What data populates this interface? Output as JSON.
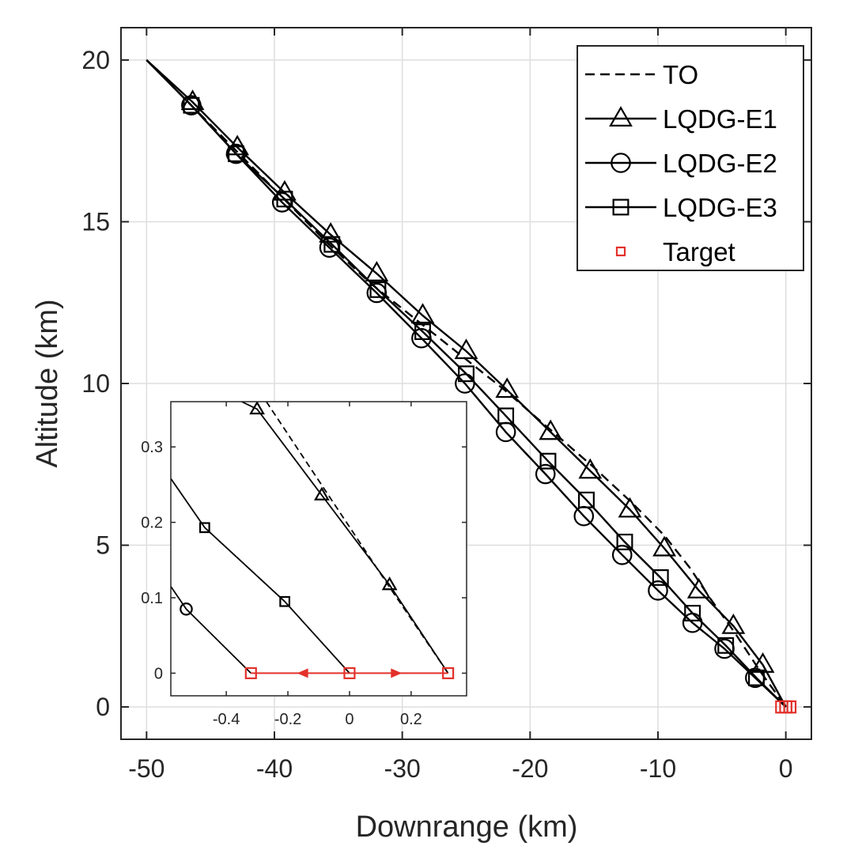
{
  "chart_data": [
    {
      "type": "line",
      "xlabel": "Downrange (km)",
      "ylabel": "Altitude (km)",
      "xlim": [
        -52,
        2
      ],
      "ylim": [
        -1,
        21
      ],
      "xticks": [
        -50,
        -40,
        -30,
        -20,
        -10,
        0
      ],
      "yticks": [
        0,
        5,
        10,
        15,
        20
      ],
      "grid": true,
      "legend": "top-right",
      "series": [
        {
          "name": "TO",
          "style": "dashed",
          "marker": "none",
          "x": [
            -50,
            -46.5,
            -43,
            -39.5,
            -36,
            -32.5,
            -29,
            -25.5,
            -22,
            -18.5,
            -15,
            -12,
            -9.5,
            -7.5,
            -6,
            -4,
            -2,
            0
          ],
          "y": [
            20,
            18.6,
            17.2,
            15.8,
            14.4,
            13.1,
            12.0,
            10.9,
            9.8,
            8.6,
            7.4,
            6.3,
            5.3,
            4.3,
            3.4,
            2.3,
            1.1,
            0
          ]
        },
        {
          "name": "LQDG-E1",
          "style": "solid",
          "marker": "triangle",
          "x": [
            -50,
            -46.4,
            -42.9,
            -39.2,
            -35.6,
            -32.0,
            -28.4,
            -25.0,
            -21.8,
            -18.4,
            -15.3,
            -12.2,
            -9.5,
            -6.8,
            -4.1,
            -1.8,
            0
          ],
          "y": [
            20,
            18.7,
            17.3,
            15.9,
            14.6,
            13.4,
            12.1,
            11.0,
            9.8,
            8.5,
            7.3,
            6.1,
            4.9,
            3.6,
            2.5,
            1.3,
            0
          ]
        },
        {
          "name": "LQDG-E2",
          "style": "solid",
          "marker": "circle",
          "x": [
            -50,
            -46.5,
            -43.0,
            -39.4,
            -35.7,
            -32.0,
            -28.5,
            -25.1,
            -21.9,
            -18.8,
            -15.8,
            -12.8,
            -10.0,
            -7.3,
            -4.8,
            -2.4,
            0
          ],
          "y": [
            20,
            18.6,
            17.1,
            15.6,
            14.2,
            12.8,
            11.4,
            10.0,
            8.5,
            7.2,
            5.9,
            4.7,
            3.6,
            2.6,
            1.8,
            0.9,
            0
          ]
        },
        {
          "name": "LQDG-E3",
          "style": "solid",
          "marker": "square",
          "x": [
            -50,
            -46.5,
            -43.0,
            -39.2,
            -35.5,
            -31.9,
            -28.4,
            -25.0,
            -21.9,
            -18.6,
            -15.6,
            -12.6,
            -9.8,
            -7.3,
            -4.7,
            -2.3,
            0
          ],
          "y": [
            20,
            18.6,
            17.1,
            15.7,
            14.3,
            12.9,
            11.6,
            10.3,
            9.0,
            7.6,
            6.4,
            5.1,
            4.0,
            2.9,
            1.9,
            0.9,
            0
          ]
        },
        {
          "name": "Target",
          "style": "none",
          "marker": "square",
          "color": "#e2312a",
          "x": [
            -0.32,
            0.0,
            0.32
          ],
          "y": [
            0,
            0,
            0
          ]
        }
      ]
    },
    {
      "type": "line",
      "inset": true,
      "xlim": [
        -0.58,
        0.38
      ],
      "ylim": [
        -0.03,
        0.36
      ],
      "xticks": [
        -0.4,
        -0.2,
        0,
        0.2
      ],
      "yticks": [
        0,
        0.1,
        0.2,
        0.3
      ],
      "xtick_labels": [
        "-0.4",
        "-0.2",
        "0",
        "0.2"
      ],
      "ytick_labels": [
        "0",
        "0.1",
        "0.2",
        "0.3"
      ],
      "grid": false,
      "series": [
        {
          "name": "TO",
          "style": "dashed",
          "marker": "none",
          "x": [
            -0.27,
            0.12,
            0.32
          ],
          "y": [
            0.36,
            0.12,
            0.0
          ]
        },
        {
          "name": "LQDG-E1",
          "style": "solid",
          "marker": "triangle",
          "x": [
            -0.35,
            -0.3,
            -0.09,
            0.13,
            0.32
          ],
          "y": [
            0.36,
            0.35,
            0.236,
            0.117,
            0.0
          ]
        },
        {
          "name": "LQDG-E2",
          "style": "solid",
          "marker": "circle",
          "x": [
            -0.58,
            -0.53,
            -0.32
          ],
          "y": [
            0.115,
            0.085,
            0.0
          ]
        },
        {
          "name": "LQDG-E3",
          "style": "solid",
          "marker": "square",
          "x": [
            -0.58,
            -0.47,
            -0.21,
            0.0
          ],
          "y": [
            0.258,
            0.193,
            0.095,
            0.0
          ]
        },
        {
          "name": "Target",
          "style": "none",
          "marker": "square",
          "color": "#e2312a",
          "x": [
            -0.32,
            0.0,
            0.32
          ],
          "y": [
            0,
            0,
            0
          ]
        }
      ],
      "annotations": [
        {
          "type": "double-arrow",
          "color": "#e2312a",
          "from": [
            -0.32,
            0
          ],
          "to": [
            0.0,
            0
          ]
        },
        {
          "type": "double-arrow",
          "color": "#e2312a",
          "from": [
            0.0,
            0
          ],
          "to": [
            0.32,
            0
          ]
        }
      ]
    }
  ]
}
